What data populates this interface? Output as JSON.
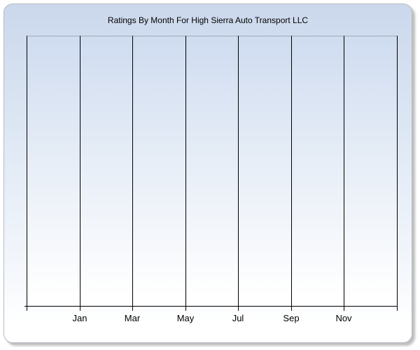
{
  "panel": {
    "border_color": "#b5bbc5",
    "gradient_top": "#cbd8ec",
    "gradient_bottom": "#ffffff",
    "shadow_color": "rgba(110,110,110,0.45)"
  },
  "chart_data": {
    "type": "line",
    "title": "Ratings By Month For High Sierra Auto Transport LLC",
    "xlabel": "",
    "ylabel": "",
    "x_tick_labels": [
      "Jan",
      "Mar",
      "May",
      "Jul",
      "Sep",
      "Nov"
    ],
    "x_gridline_count": 8,
    "first_labeled_gridline_index": 1,
    "series": [],
    "values": [],
    "grid": "vertical-major-only",
    "legend": "none",
    "y_tick_labels": [],
    "plot_state": "empty - no data points or bars rendered"
  },
  "colors": {
    "gridline": "#000000",
    "axis_line": "#000000",
    "plot_top_border": "#a0aabd",
    "plot_gradient_top": "#cfdcf0",
    "plot_gradient_bottom": "#ffffff",
    "title_text": "#000000",
    "axis_label_text": "#000000"
  }
}
